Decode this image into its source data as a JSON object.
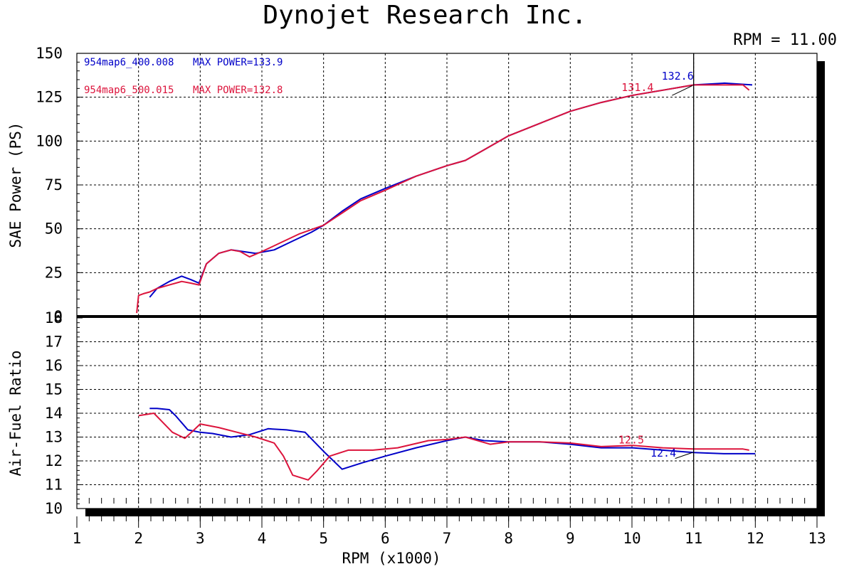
{
  "title": "Dynojet Research Inc.",
  "rpm_readout": "RPM = 11.00",
  "colors": {
    "run1": "#0000c8",
    "run2": "#dc143c",
    "grid": "#000000",
    "cursor": "#000000"
  },
  "chart_data": {
    "type": "line",
    "xlabel": "RPM (x1000)",
    "xlim": [
      1,
      13
    ],
    "xticks": [
      1,
      2,
      3,
      4,
      5,
      6,
      7,
      8,
      9,
      10,
      11,
      12,
      13
    ],
    "cursor_x": 11.0,
    "legend": [
      {
        "file": "954map6_400.008",
        "max": "MAX POWER=133.9",
        "color": "#0000c8"
      },
      {
        "file": "954map6_500.015",
        "max": "MAX POWER=132.8",
        "color": "#dc143c"
      }
    ],
    "panels": [
      {
        "name": "power",
        "ylabel": "SAE Power (PS)",
        "ylim": [
          0,
          150
        ],
        "yticks": [
          0,
          25,
          50,
          75,
          100,
          125,
          150
        ],
        "series": [
          {
            "file": "954map6_400.008",
            "color": "#0000c8",
            "x": [
              2.18,
              2.3,
              2.5,
              2.7,
              2.85,
              2.98,
              3.1,
              3.3,
              3.5,
              3.7,
              3.9,
              4.2,
              4.5,
              4.8,
              5.0,
              5.3,
              5.6,
              6.0,
              6.5,
              7.0,
              7.3,
              7.6,
              8.0,
              8.5,
              9.0,
              9.5,
              10.0,
              10.5,
              11.0,
              11.5,
              11.95
            ],
            "y": [
              11,
              16,
              20,
              23,
              21,
              19,
              30,
              36,
              38,
              37,
              36,
              38,
              43,
              48,
              52,
              60,
              67,
              73,
              80,
              86,
              89,
              95,
              103,
              110,
              117,
              122,
              126,
              129,
              132,
              133,
              132
            ]
          },
          {
            "file": "954map6_500.015",
            "color": "#dc143c",
            "x": [
              1.97,
              2.0,
              2.08,
              2.18,
              2.3,
              2.5,
              2.7,
              2.85,
              2.98,
              3.1,
              3.3,
              3.5,
              3.65,
              3.8,
              4.0,
              4.3,
              4.6,
              5.0,
              5.3,
              5.6,
              6.0,
              6.5,
              7.0,
              7.3,
              7.6,
              8.0,
              8.5,
              9.0,
              9.5,
              10.0,
              10.5,
              11.0,
              11.5,
              11.8,
              11.9
            ],
            "y": [
              2,
              12,
              13,
              14,
              16,
              18,
              20,
              19,
              18,
              30,
              36,
              38,
              37,
              34,
              37,
              42,
              47,
              52,
              59,
              66,
              72,
              80,
              86,
              89,
              95,
              103,
              110,
              117,
              122,
              126,
              129,
              132,
              132,
              132,
              129
            ]
          }
        ],
        "labels": [
          {
            "text": "132.6",
            "x": 10.48,
            "y": 135,
            "color": "#0000c8"
          },
          {
            "text": "131.4",
            "x": 9.83,
            "y": 128.5,
            "color": "#dc143c"
          }
        ],
        "leader": {
          "x1": 10.65,
          "y1": 126,
          "x2": 10.98,
          "y2": 131.6
        }
      },
      {
        "name": "afr",
        "ylabel": "Air-Fuel Ratio",
        "ylim": [
          10,
          18
        ],
        "yticks": [
          10,
          11,
          12,
          13,
          14,
          15,
          16,
          17,
          18
        ],
        "series": [
          {
            "file": "954map6_400.008",
            "color": "#0000c8",
            "x": [
              2.18,
              2.3,
              2.5,
              2.6,
              2.8,
              3.0,
              3.2,
              3.5,
              3.8,
              4.1,
              4.4,
              4.7,
              5.0,
              5.3,
              5.6,
              6.0,
              6.5,
              7.0,
              7.3,
              7.6,
              8.0,
              8.5,
              9.0,
              9.5,
              10.0,
              10.5,
              11.0,
              11.5,
              12.0
            ],
            "y": [
              14.2,
              14.2,
              14.15,
              13.9,
              13.3,
              13.2,
              13.15,
              13.0,
              13.1,
              13.35,
              13.3,
              13.2,
              12.4,
              11.65,
              11.9,
              12.2,
              12.55,
              12.85,
              13.0,
              12.85,
              12.8,
              12.8,
              12.7,
              12.55,
              12.55,
              12.45,
              12.35,
              12.3,
              12.3
            ]
          },
          {
            "file": "954map6_500.015",
            "color": "#dc143c",
            "x": [
              2.0,
              2.25,
              2.4,
              2.55,
              2.75,
              2.9,
              3.0,
              3.3,
              3.6,
              3.9,
              4.2,
              4.35,
              4.5,
              4.75,
              4.9,
              5.1,
              5.4,
              5.8,
              6.2,
              6.7,
              7.0,
              7.3,
              7.7,
              8.0,
              8.5,
              9.0,
              9.5,
              10.0,
              10.5,
              11.0,
              11.5,
              11.8,
              11.9
            ],
            "y": [
              13.9,
              14.0,
              13.6,
              13.2,
              12.95,
              13.3,
              13.55,
              13.4,
              13.2,
              13.0,
              12.75,
              12.2,
              11.4,
              11.2,
              11.6,
              12.2,
              12.45,
              12.45,
              12.55,
              12.85,
              12.9,
              13.0,
              12.7,
              12.8,
              12.8,
              12.75,
              12.6,
              12.65,
              12.55,
              12.5,
              12.5,
              12.5,
              12.45
            ]
          }
        ],
        "labels": [
          {
            "text": "12.5",
            "x": 9.78,
            "y": 12.73,
            "color": "#dc143c"
          },
          {
            "text": "12.4",
            "x": 10.3,
            "y": 12.18,
            "color": "#0000c8"
          }
        ],
        "leader": {
          "x1": 10.7,
          "y1": 12.1,
          "x2": 10.98,
          "y2": 12.35
        }
      }
    ]
  }
}
